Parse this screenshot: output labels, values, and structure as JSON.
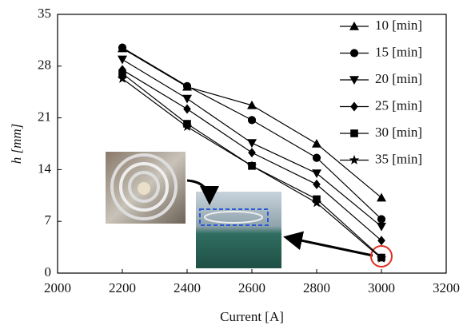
{
  "chart_data": {
    "type": "line",
    "xlabel": "Current [A]",
    "ylabel": "h [mm]",
    "x": [
      2200,
      2400,
      2600,
      2800,
      3000
    ],
    "series": [
      {
        "name": "10 [min]",
        "color": "#000000",
        "marker": "triangle-up",
        "values": [
          30.4,
          25.2,
          22.7,
          17.5,
          10.2
        ]
      },
      {
        "name": "15 [min]",
        "color": "#000000",
        "marker": "circle",
        "values": [
          30.5,
          25.3,
          20.7,
          15.6,
          7.3
        ]
      },
      {
        "name": "20 [min]",
        "color": "#000000",
        "marker": "triangle-down",
        "values": [
          28.9,
          23.6,
          17.6,
          13.5,
          6.3
        ]
      },
      {
        "name": "25 [min]",
        "color": "#000000",
        "marker": "diamond",
        "values": [
          27.5,
          22.2,
          16.3,
          12.0,
          4.4
        ]
      },
      {
        "name": "30 [min]",
        "color": "#000000",
        "marker": "square",
        "values": [
          27.0,
          20.2,
          14.5,
          10.0,
          2.1
        ]
      },
      {
        "name": "35 [min]",
        "color": "#000000",
        "marker": "star",
        "values": [
          26.3,
          19.8,
          14.5,
          9.5,
          2.0
        ]
      }
    ],
    "xlim": [
      2000,
      3200
    ],
    "xticks": [
      2000,
      2200,
      2400,
      2600,
      2800,
      3000,
      3200
    ],
    "ylim": [
      0,
      35
    ],
    "yticks": [
      0,
      7,
      14,
      21,
      28,
      35
    ],
    "grid": false,
    "legend": "upper right"
  }
}
